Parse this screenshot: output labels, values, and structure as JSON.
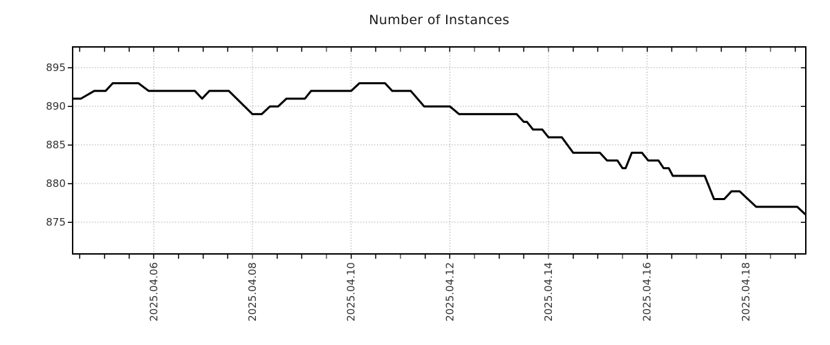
{
  "chart_data": {
    "type": "line",
    "title": "Number of Instances",
    "xlabel": "",
    "ylabel": "",
    "legend": "none",
    "grid": "dotted",
    "xlim": [
      "2025-04-04T08:30",
      "2025-04-19T05:10"
    ],
    "ylim": [
      870.9,
      897.7
    ],
    "y_ticks": [
      875,
      880,
      885,
      890,
      895
    ],
    "x_ticks": [
      {
        "label": "2025.04.06",
        "date": "2025-04-06T00:00"
      },
      {
        "label": "2025.04.08",
        "date": "2025-04-08T00:00"
      },
      {
        "label": "2025.04.10",
        "date": "2025-04-10T00:00"
      },
      {
        "label": "2025.04.12",
        "date": "2025-04-12T00:00"
      },
      {
        "label": "2025.04.14",
        "date": "2025-04-14T00:00"
      },
      {
        "label": "2025.04.16",
        "date": "2025-04-16T00:00"
      },
      {
        "label": "2025.04.18",
        "date": "2025-04-18T00:00"
      }
    ],
    "x_minor_ticks": {
      "start": "2025-04-04T12:00",
      "every_hours": 12
    },
    "series": [
      {
        "name": "instances",
        "color": "#000000",
        "points": [
          [
            "2025-04-04T08:30",
            891
          ],
          [
            "2025-04-04T12:30",
            891
          ],
          [
            "2025-04-04T19:00",
            892
          ],
          [
            "2025-04-05T00:30",
            892
          ],
          [
            "2025-04-05T04:00",
            893
          ],
          [
            "2025-04-05T16:30",
            893
          ],
          [
            "2025-04-05T21:30",
            892
          ],
          [
            "2025-04-06T20:00",
            892
          ],
          [
            "2025-04-06T23:30",
            891
          ],
          [
            "2025-04-07T03:00",
            892
          ],
          [
            "2025-04-07T12:30",
            892
          ],
          [
            "2025-04-08T00:00",
            889
          ],
          [
            "2025-04-08T04:30",
            889
          ],
          [
            "2025-04-08T08:30",
            890
          ],
          [
            "2025-04-08T12:30",
            890
          ],
          [
            "2025-04-08T16:30",
            891
          ],
          [
            "2025-04-09T01:30",
            891
          ],
          [
            "2025-04-09T04:30",
            892
          ],
          [
            "2025-04-10T00:00",
            892
          ],
          [
            "2025-04-10T04:00",
            893
          ],
          [
            "2025-04-10T16:30",
            893
          ],
          [
            "2025-04-10T20:00",
            892
          ],
          [
            "2025-04-11T05:00",
            892
          ],
          [
            "2025-04-11T11:30",
            890
          ],
          [
            "2025-04-12T00:00",
            890
          ],
          [
            "2025-04-12T04:30",
            889
          ],
          [
            "2025-04-13T08:30",
            889
          ],
          [
            "2025-04-13T12:00",
            888
          ],
          [
            "2025-04-13T13:30",
            888
          ],
          [
            "2025-04-13T16:30",
            887
          ],
          [
            "2025-04-13T21:00",
            887
          ],
          [
            "2025-04-14T00:00",
            886
          ],
          [
            "2025-04-14T06:30",
            886
          ],
          [
            "2025-04-14T12:00",
            884
          ],
          [
            "2025-04-15T01:00",
            884
          ],
          [
            "2025-04-15T04:30",
            883
          ],
          [
            "2025-04-15T09:30",
            883
          ],
          [
            "2025-04-15T12:00",
            882
          ],
          [
            "2025-04-15T13:30",
            882
          ],
          [
            "2025-04-15T16:30",
            884
          ],
          [
            "2025-04-15T21:30",
            884
          ],
          [
            "2025-04-16T00:30",
            883
          ],
          [
            "2025-04-16T05:30",
            883
          ],
          [
            "2025-04-16T08:00",
            882
          ],
          [
            "2025-04-16T10:30",
            882
          ],
          [
            "2025-04-16T12:30",
            881
          ],
          [
            "2025-04-17T04:00",
            881
          ],
          [
            "2025-04-17T08:30",
            878
          ],
          [
            "2025-04-17T13:30",
            878
          ],
          [
            "2025-04-17T17:00",
            879
          ],
          [
            "2025-04-17T21:00",
            879
          ],
          [
            "2025-04-18T05:00",
            877
          ],
          [
            "2025-04-19T01:00",
            877
          ],
          [
            "2025-04-19T05:00",
            876
          ]
        ]
      }
    ]
  },
  "colors": {
    "line": "#000000",
    "grid": "#a8a8a8",
    "axis": "#000000",
    "tick_text": "#333333",
    "title_text": "#1a1a1a",
    "background": "#ffffff"
  }
}
